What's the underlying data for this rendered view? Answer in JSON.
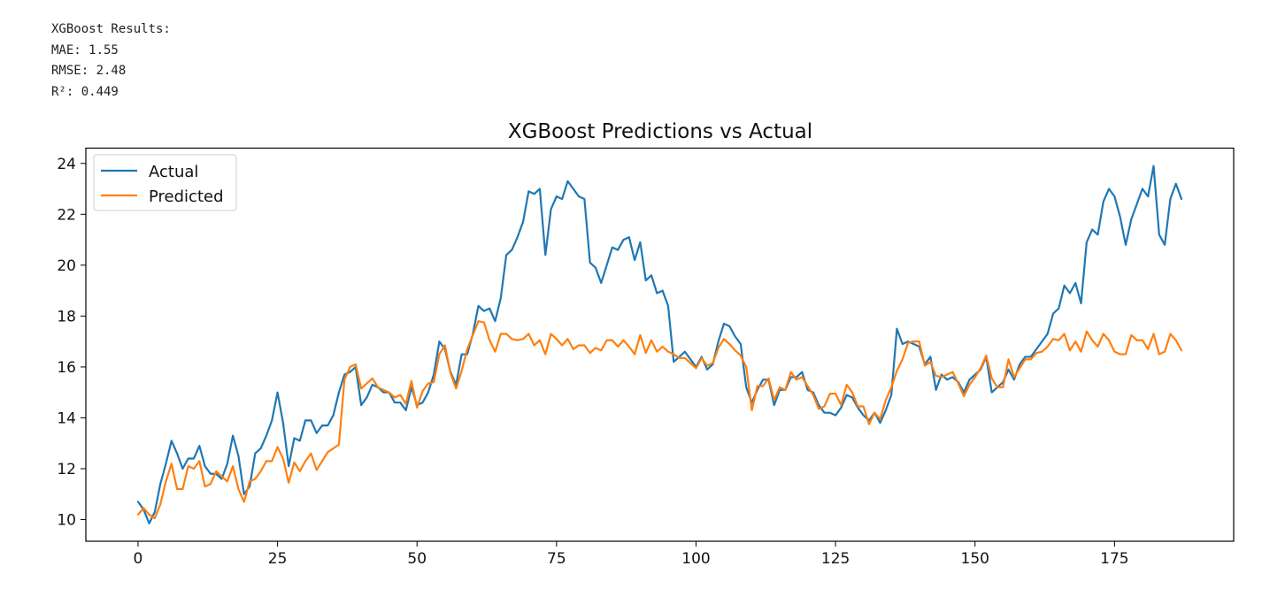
{
  "output": {
    "heading": "XGBoost Results:",
    "mae": "MAE: 1.55",
    "rmse": "RMSE: 2.48",
    "r2": "R²: 0.449"
  },
  "chart_data": {
    "type": "line",
    "title": "XGBoost Predictions vs Actual",
    "xlabel": "",
    "ylabel": "",
    "xlim": [
      -9.35,
      196.35
    ],
    "ylim": [
      9.15,
      24.6
    ],
    "x_ticks": [
      0,
      25,
      50,
      75,
      100,
      125,
      150,
      175
    ],
    "y_ticks": [
      10,
      12,
      14,
      16,
      18,
      20,
      22,
      24
    ],
    "grid": false,
    "legend": "top-left",
    "series": [
      {
        "name": "Actual",
        "color": "#1f77b4",
        "values": [
          10.7,
          10.4,
          9.85,
          10.3,
          11.4,
          12.2,
          13.1,
          12.6,
          12.0,
          12.4,
          12.4,
          12.9,
          12.1,
          11.8,
          11.8,
          11.6,
          12.2,
          13.3,
          12.5,
          11.0,
          11.3,
          12.6,
          12.8,
          13.3,
          13.9,
          15.0,
          13.8,
          12.1,
          13.2,
          13.1,
          13.9,
          13.9,
          13.4,
          13.7,
          13.7,
          14.1,
          15.0,
          15.7,
          15.8,
          16.0,
          14.5,
          14.8,
          15.3,
          15.2,
          15.0,
          15.0,
          14.6,
          14.6,
          14.3,
          15.2,
          14.5,
          14.6,
          15.0,
          15.7,
          17.0,
          16.7,
          15.8,
          15.3,
          16.5,
          16.5,
          17.3,
          18.4,
          18.2,
          18.3,
          17.8,
          18.7,
          20.4,
          20.6,
          21.1,
          21.7,
          22.9,
          22.8,
          23.0,
          20.4,
          22.2,
          22.7,
          22.6,
          23.3,
          23.0,
          22.7,
          22.6,
          20.1,
          19.9,
          19.3,
          20.0,
          20.7,
          20.6,
          21.0,
          21.1,
          20.2,
          20.9,
          19.4,
          19.6,
          18.9,
          19.0,
          18.4,
          16.2,
          16.4,
          16.6,
          16.3,
          16.0,
          16.4,
          15.9,
          16.1,
          17.0,
          17.7,
          17.6,
          17.2,
          16.9,
          15.2,
          14.6,
          15.1,
          15.5,
          15.5,
          14.5,
          15.1,
          15.1,
          15.6,
          15.6,
          15.8,
          15.1,
          15.0,
          14.5,
          14.2,
          14.2,
          14.1,
          14.4,
          14.9,
          14.8,
          14.4,
          14.1,
          13.9,
          14.2,
          13.8,
          14.3,
          14.9,
          17.5,
          16.9,
          17.0,
          16.9,
          16.8,
          16.1,
          16.4,
          15.1,
          15.7,
          15.5,
          15.6,
          15.4,
          15.0,
          15.5,
          15.7,
          15.9,
          16.4,
          15.0,
          15.2,
          15.4,
          15.9,
          15.5,
          16.1,
          16.4,
          16.4,
          16.7,
          17.0,
          17.3,
          18.1,
          18.3,
          19.2,
          18.9,
          19.3,
          18.5,
          20.9,
          21.4,
          21.2,
          22.5,
          23.0,
          22.7,
          21.9,
          20.8,
          21.8,
          22.4,
          23.0,
          22.7,
          23.9,
          21.2,
          20.8,
          22.6,
          23.2,
          22.6
        ]
      },
      {
        "name": "Predicted",
        "color": "#ff7f0e",
        "values": [
          10.2,
          10.45,
          10.2,
          10.05,
          10.6,
          11.5,
          12.2,
          11.2,
          11.2,
          12.1,
          12.0,
          12.3,
          11.3,
          11.4,
          11.9,
          11.7,
          11.5,
          12.1,
          11.2,
          10.7,
          11.5,
          11.6,
          11.9,
          12.3,
          12.3,
          12.85,
          12.4,
          11.45,
          12.25,
          11.9,
          12.3,
          12.6,
          11.95,
          12.3,
          12.65,
          12.8,
          12.95,
          15.5,
          16.0,
          16.1,
          15.15,
          15.35,
          15.55,
          15.2,
          15.1,
          15.0,
          14.8,
          14.9,
          14.55,
          15.45,
          14.4,
          15.05,
          15.35,
          15.4,
          16.5,
          16.85,
          15.75,
          15.15,
          15.85,
          16.7,
          17.25,
          17.8,
          17.75,
          17.05,
          16.6,
          17.3,
          17.3,
          17.1,
          17.05,
          17.1,
          17.3,
          16.85,
          17.05,
          16.5,
          17.3,
          17.1,
          16.85,
          17.1,
          16.7,
          16.85,
          16.85,
          16.55,
          16.75,
          16.65,
          17.05,
          17.05,
          16.8,
          17.05,
          16.8,
          16.5,
          17.25,
          16.55,
          17.05,
          16.6,
          16.8,
          16.6,
          16.5,
          16.35,
          16.35,
          16.15,
          15.95,
          16.35,
          16.05,
          16.15,
          16.75,
          17.1,
          16.9,
          16.65,
          16.45,
          16.0,
          14.3,
          15.25,
          15.25,
          15.55,
          14.7,
          15.2,
          15.1,
          15.8,
          15.5,
          15.6,
          15.25,
          14.9,
          14.35,
          14.45,
          14.95,
          14.95,
          14.5,
          15.3,
          15.0,
          14.45,
          14.45,
          13.75,
          14.2,
          13.95,
          14.7,
          15.2,
          15.85,
          16.3,
          16.95,
          17.0,
          17.0,
          16.05,
          16.2,
          15.65,
          15.6,
          15.7,
          15.8,
          15.35,
          14.85,
          15.3,
          15.6,
          15.95,
          16.45,
          15.55,
          15.2,
          15.2,
          16.3,
          15.6,
          15.95,
          16.3,
          16.3,
          16.55,
          16.6,
          16.8,
          17.1,
          17.05,
          17.3,
          16.65,
          17.0,
          16.6,
          17.4,
          17.05,
          16.8,
          17.3,
          17.05,
          16.6,
          16.5,
          16.5,
          17.25,
          17.05,
          17.05,
          16.7,
          17.3,
          16.5,
          16.6,
          17.3,
          17.05,
          16.65
        ]
      }
    ]
  }
}
